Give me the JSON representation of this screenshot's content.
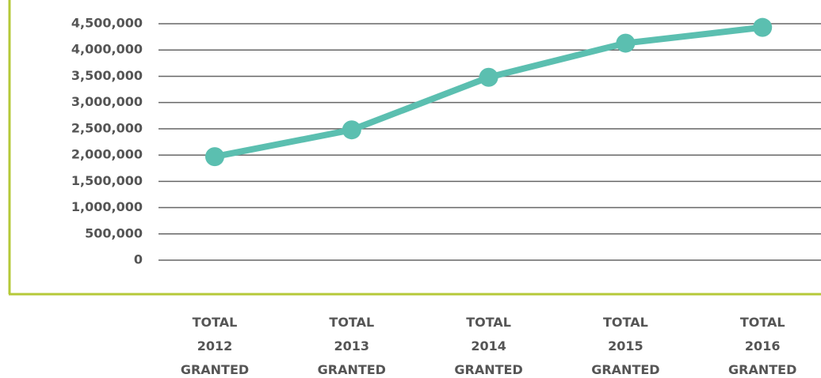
{
  "chart_data": {
    "type": "line",
    "categories": [
      "TOTAL 2012 GRANTED",
      "TOTAL 2013 GRANTED",
      "TOTAL 2014 GRANTED",
      "TOTAL 2015 GRANTED",
      "TOTAL 2016 GRANTED"
    ],
    "series": [
      {
        "color": "#5bbfb0",
        "values": [
          1970000,
          2480000,
          3480000,
          4130000,
          4430000
        ]
      }
    ],
    "ylim": [
      0,
      4500000
    ],
    "yticks": [
      0,
      {
        "value": 500000,
        "label": "500,000"
      },
      {
        "value": 1000000,
        "label": "1,000,000"
      },
      {
        "value": 1500000,
        "label": "1,500,000"
      },
      {
        "value": 2000000,
        "label": "2,000,000"
      },
      {
        "value": 2500000,
        "label": "2,500,000"
      },
      {
        "value": 3000000,
        "label": "3,000,000"
      },
      {
        "value": 3500000,
        "label": "3,500,000"
      },
      {
        "value": 4000000,
        "label": "4,000,000"
      },
      {
        "value": 4500000,
        "label": "4,500,000"
      }
    ],
    "grid": true
  }
}
